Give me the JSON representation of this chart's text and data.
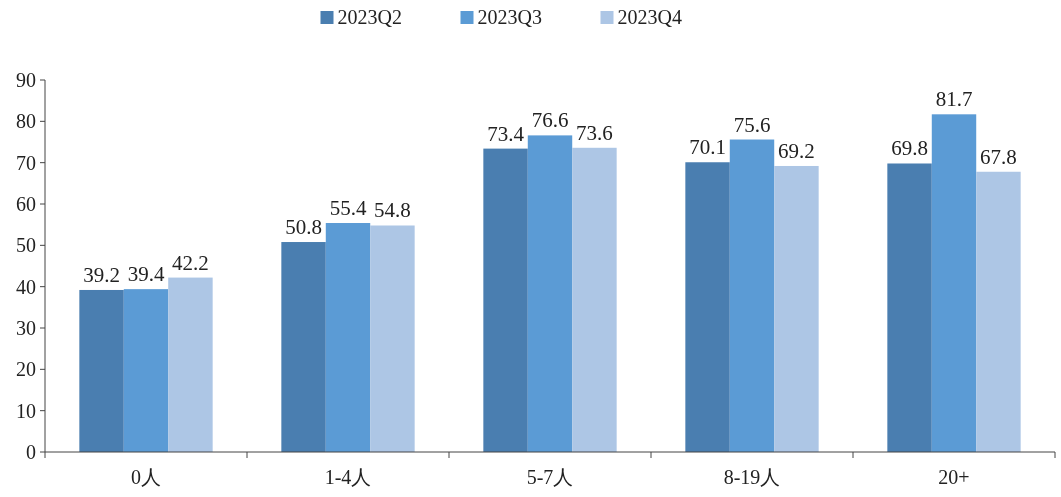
{
  "chart_data": {
    "type": "bar",
    "categories": [
      "0人",
      "1-4人",
      "5-7人",
      "8-19人",
      "20+"
    ],
    "series": [
      {
        "name": "2023Q2",
        "color": "#4a7eb0",
        "values": [
          39.2,
          50.8,
          73.4,
          70.1,
          69.8
        ]
      },
      {
        "name": "2023Q3",
        "color": "#5b9bd5",
        "values": [
          39.4,
          55.4,
          76.6,
          75.6,
          81.7
        ]
      },
      {
        "name": "2023Q4",
        "color": "#adc6e5",
        "values": [
          42.2,
          54.8,
          73.6,
          69.2,
          67.8
        ]
      }
    ],
    "ylim": [
      0,
      90
    ],
    "yticks": [
      0,
      10,
      20,
      30,
      40,
      50,
      60,
      70,
      80,
      90
    ],
    "data_labels": true,
    "legend": "top",
    "grid": false
  }
}
